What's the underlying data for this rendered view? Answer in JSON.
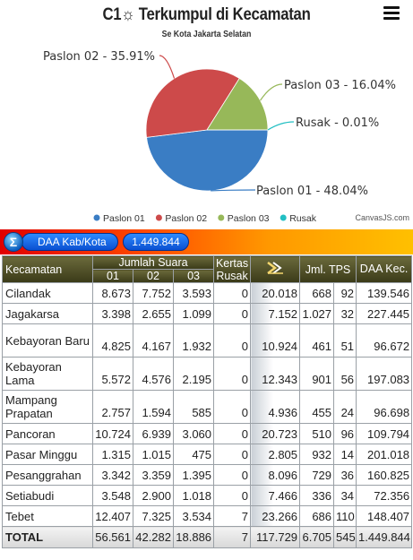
{
  "header": {
    "title": "C1☼ Terkumpul di Kecamatan",
    "subtitle": "Se Kota Jakarta Selatan",
    "credit": "CanvasJS.com"
  },
  "chart_data": {
    "type": "pie",
    "slices": [
      {
        "name": "Paslon 01",
        "value": 48.04,
        "label": "Paslon 01 - 48.04%",
        "color": "#3a7dc4"
      },
      {
        "name": "Paslon 02",
        "value": 35.91,
        "label": "Paslon 02 - 35.91%",
        "color": "#cd4a4a"
      },
      {
        "name": "Paslon 03",
        "value": 16.04,
        "label": "Paslon 03 - 16.04%",
        "color": "#97b859"
      },
      {
        "name": "Rusak",
        "value": 0.01,
        "label": "Rusak - 0.01%",
        "color": "#22bfc3"
      }
    ],
    "legend": [
      "Paslon 01",
      "Paslon 02",
      "Paslon 03",
      "Rusak"
    ],
    "legend_placement": "bottom-center"
  },
  "daa": {
    "icon": "sigma-icon",
    "label": "DAA Kab/Kota",
    "value": "1.449.844"
  },
  "table": {
    "headers": {
      "kecamatan": "Kecamatan",
      "jumlah_suara": "Jumlah Suara",
      "kertas_rusak": "Kertas Rusak",
      "total_icon": "sum-icon",
      "jml_tps": "Jml. TPS",
      "daa_kec": "DAA Kec.",
      "sub": [
        "01",
        "02",
        "03"
      ]
    },
    "rows": [
      {
        "name": "Cilandak",
        "p1": "8.673",
        "p2": "7.752",
        "p3": "3.593",
        "rusak": "0",
        "total": "20.018",
        "tps_a": "668",
        "tps_b": "92",
        "daa": "139.546"
      },
      {
        "name": "Jagakarsa",
        "p1": "3.398",
        "p2": "2.655",
        "p3": "1.099",
        "rusak": "0",
        "total": "7.152",
        "tps_a": "1.027",
        "tps_b": "32",
        "daa": "227.445"
      },
      {
        "name": "Kebayoran Baru",
        "p1": "4.825",
        "p2": "4.167",
        "p3": "1.932",
        "rusak": "0",
        "total": "10.924",
        "tps_a": "461",
        "tps_b": "51",
        "daa": "96.672"
      },
      {
        "name": "Kebayoran Lama",
        "p1": "5.572",
        "p2": "4.576",
        "p3": "2.195",
        "rusak": "0",
        "total": "12.343",
        "tps_a": "901",
        "tps_b": "56",
        "daa": "197.083"
      },
      {
        "name": "Mampang Prapatan",
        "p1": "2.757",
        "p2": "1.594",
        "p3": "585",
        "rusak": "0",
        "total": "4.936",
        "tps_a": "455",
        "tps_b": "24",
        "daa": "96.698"
      },
      {
        "name": "Pancoran",
        "p1": "10.724",
        "p2": "6.939",
        "p3": "3.060",
        "rusak": "0",
        "total": "20.723",
        "tps_a": "510",
        "tps_b": "96",
        "daa": "109.794"
      },
      {
        "name": "Pasar Minggu",
        "p1": "1.315",
        "p2": "1.015",
        "p3": "475",
        "rusak": "0",
        "total": "2.805",
        "tps_a": "932",
        "tps_b": "14",
        "daa": "201.018"
      },
      {
        "name": "Pesanggrahan",
        "p1": "3.342",
        "p2": "3.359",
        "p3": "1.395",
        "rusak": "0",
        "total": "8.096",
        "tps_a": "729",
        "tps_b": "36",
        "daa": "160.825"
      },
      {
        "name": "Setiabudi",
        "p1": "3.548",
        "p2": "2.900",
        "p3": "1.018",
        "rusak": "0",
        "total": "7.466",
        "tps_a": "336",
        "tps_b": "34",
        "daa": "72.356"
      },
      {
        "name": "Tebet",
        "p1": "12.407",
        "p2": "7.325",
        "p3": "3.534",
        "rusak": "7",
        "total": "23.266",
        "tps_a": "686",
        "tps_b": "110",
        "daa": "148.407"
      }
    ],
    "footer": {
      "name": "TOTAL",
      "p1": "56.561",
      "p2": "42.282",
      "p3": "18.886",
      "rusak": "7",
      "total": "117.729",
      "tps_a": "6.705",
      "tps_b": "545",
      "daa": "1.449.844"
    }
  }
}
